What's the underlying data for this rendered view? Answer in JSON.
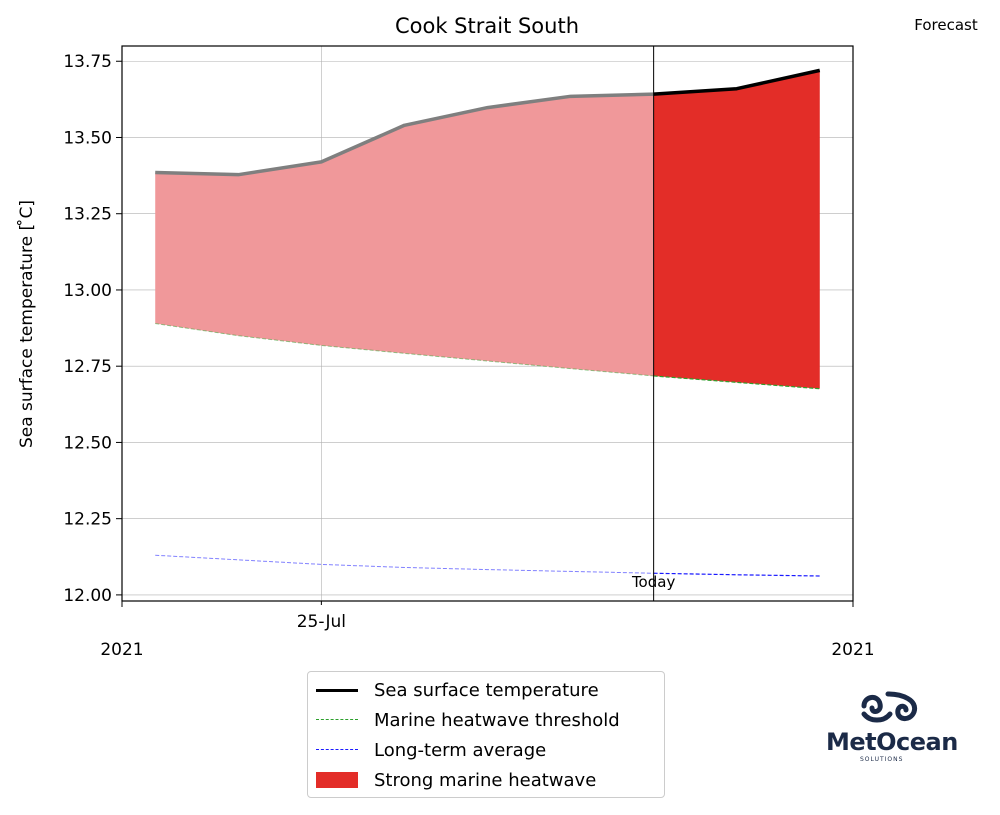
{
  "chart_data": {
    "type": "area",
    "title": "Cook Strait South",
    "corner_label": "Forecast",
    "ylabel": "Sea surface temperature [$^\\circ$C]",
    "ylabel_display": "Sea surface temperature [ ̊C]",
    "ylim": [
      11.98,
      13.8
    ],
    "yticks": [
      "12.00",
      "12.25",
      "12.50",
      "12.75",
      "13.00",
      "13.25",
      "13.50",
      "13.75"
    ],
    "ytick_values": [
      12.0,
      12.25,
      12.5,
      12.75,
      13.0,
      13.25,
      13.5,
      13.75
    ],
    "xlim": [
      -0.4,
      8.4
    ],
    "x_tick_label": "25-Jul",
    "x_tick_value": 2,
    "x_year_labels": [
      "2021",
      "2021"
    ],
    "today_label": "Today",
    "today_x": 6,
    "grid": true,
    "x": [
      0,
      1,
      2,
      3,
      4,
      5,
      6,
      7,
      8
    ],
    "series": [
      {
        "name": "Sea surface temperature",
        "color": "#000000",
        "values": [
          13.385,
          13.378,
          13.42,
          13.54,
          13.598,
          13.635,
          13.642,
          13.66,
          13.72
        ]
      },
      {
        "name": "Marine heatwave threshold",
        "color": "#2ca02c",
        "values": [
          12.89,
          12.85,
          12.818,
          12.792,
          12.767,
          12.742,
          12.718,
          12.697,
          12.676
        ]
      },
      {
        "name": "Long-term average",
        "color": "#1a1aff",
        "values": [
          12.13,
          12.115,
          12.1,
          12.09,
          12.083,
          12.077,
          12.071,
          12.066,
          12.062
        ]
      }
    ],
    "fill": {
      "name": "Strong marine heatwave",
      "color": "#e32d28",
      "past_color": "#f0989a"
    },
    "legend": {
      "placement": "bottom-center",
      "items": [
        {
          "label": "Sea surface temperature",
          "kind": "line",
          "color": "#000000"
        },
        {
          "label": "Marine heatwave threshold",
          "kind": "dash",
          "color": "#2ca02c"
        },
        {
          "label": "Long-term average",
          "kind": "dash",
          "color": "#1a1aff"
        },
        {
          "label": "Strong marine heatwave",
          "kind": "patch",
          "color": "#e32d28"
        }
      ]
    }
  },
  "logo": {
    "name": "MetOcean",
    "sub": "SOLUTIONS",
    "color": "#1b2a47"
  }
}
